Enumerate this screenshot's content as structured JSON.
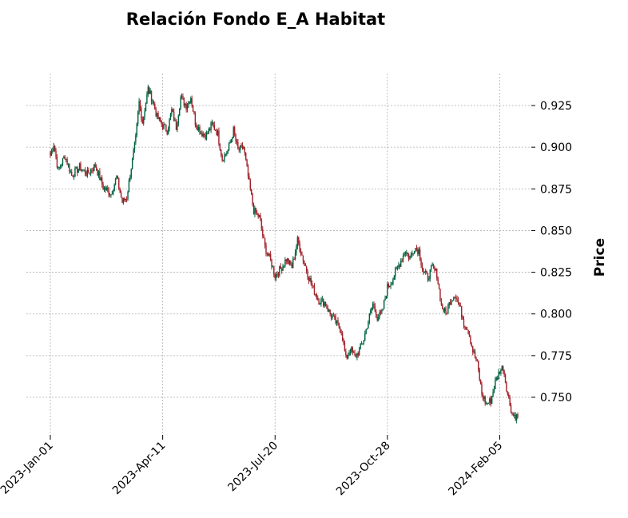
{
  "chart_data": {
    "type": "candlestick",
    "title": "Relación Fondo E_A Habitat",
    "ylabel": "Price",
    "xlabel": "",
    "ylim": [
      0.73,
      0.945
    ],
    "yticks": [
      0.75,
      0.775,
      0.8,
      0.825,
      0.85,
      0.875,
      0.9,
      0.925
    ],
    "ytick_labels": [
      "0.750",
      "0.775",
      "0.800",
      "0.825",
      "0.850",
      "0.875",
      "0.900",
      "0.925"
    ],
    "xticks": [
      "2023-Jan-01",
      "2023-Apr-11",
      "2023-Jul-20",
      "2023-Oct-28",
      "2024-Feb-05"
    ],
    "x_start": "2023-01-01",
    "x_end": "2024-02-21",
    "grid": true,
    "colors": {
      "up": "#006340",
      "down": "#a02128",
      "grid": "#b0b0b0"
    },
    "close_path": [
      [
        "2023-01-01",
        0.895
      ],
      [
        "2023-01-04",
        0.902
      ],
      [
        "2023-01-08",
        0.886
      ],
      [
        "2023-01-14",
        0.895
      ],
      [
        "2023-01-20",
        0.883
      ],
      [
        "2023-01-27",
        0.888
      ],
      [
        "2023-02-03",
        0.884
      ],
      [
        "2023-02-10",
        0.889
      ],
      [
        "2023-02-17",
        0.876
      ],
      [
        "2023-02-24",
        0.872
      ],
      [
        "2023-03-01",
        0.882
      ],
      [
        "2023-03-06",
        0.867
      ],
      [
        "2023-03-10",
        0.87
      ],
      [
        "2023-03-14",
        0.888
      ],
      [
        "2023-03-18",
        0.905
      ],
      [
        "2023-03-21",
        0.927
      ],
      [
        "2023-03-24",
        0.915
      ],
      [
        "2023-03-29",
        0.935
      ],
      [
        "2023-04-02",
        0.928
      ],
      [
        "2023-04-06",
        0.918
      ],
      [
        "2023-04-11",
        0.913
      ],
      [
        "2023-04-15",
        0.91
      ],
      [
        "2023-04-19",
        0.922
      ],
      [
        "2023-04-23",
        0.912
      ],
      [
        "2023-04-27",
        0.93
      ],
      [
        "2023-05-02",
        0.925
      ],
      [
        "2023-05-06",
        0.93
      ],
      [
        "2023-05-10",
        0.915
      ],
      [
        "2023-05-15",
        0.909
      ],
      [
        "2023-05-20",
        0.907
      ],
      [
        "2023-05-25",
        0.914
      ],
      [
        "2023-05-30",
        0.908
      ],
      [
        "2023-06-03",
        0.893
      ],
      [
        "2023-06-08",
        0.898
      ],
      [
        "2023-06-13",
        0.91
      ],
      [
        "2023-06-17",
        0.898
      ],
      [
        "2023-06-22",
        0.9
      ],
      [
        "2023-06-27",
        0.878
      ],
      [
        "2023-07-01",
        0.862
      ],
      [
        "2023-07-06",
        0.858
      ],
      [
        "2023-07-11",
        0.84
      ],
      [
        "2023-07-16",
        0.832
      ],
      [
        "2023-07-20",
        0.823
      ],
      [
        "2023-07-25",
        0.827
      ],
      [
        "2023-07-30",
        0.833
      ],
      [
        "2023-08-04",
        0.828
      ],
      [
        "2023-08-09",
        0.844
      ],
      [
        "2023-08-14",
        0.833
      ],
      [
        "2023-08-19",
        0.822
      ],
      [
        "2023-08-23",
        0.815
      ],
      [
        "2023-08-28",
        0.808
      ],
      [
        "2023-09-02",
        0.807
      ],
      [
        "2023-09-07",
        0.8
      ],
      [
        "2023-09-12",
        0.795
      ],
      [
        "2023-09-17",
        0.79
      ],
      [
        "2023-09-21",
        0.773
      ],
      [
        "2023-09-25",
        0.779
      ],
      [
        "2023-09-29",
        0.774
      ],
      [
        "2023-10-03",
        0.778
      ],
      [
        "2023-10-07",
        0.785
      ],
      [
        "2023-10-11",
        0.796
      ],
      [
        "2023-10-15",
        0.806
      ],
      [
        "2023-10-19",
        0.798
      ],
      [
        "2023-10-23",
        0.8
      ],
      [
        "2023-10-28",
        0.816
      ],
      [
        "2023-11-01",
        0.82
      ],
      [
        "2023-11-05",
        0.826
      ],
      [
        "2023-11-09",
        0.832
      ],
      [
        "2023-11-13",
        0.838
      ],
      [
        "2023-11-17",
        0.833
      ],
      [
        "2023-11-21",
        0.84
      ],
      [
        "2023-11-25",
        0.838
      ],
      [
        "2023-11-29",
        0.825
      ],
      [
        "2023-12-03",
        0.822
      ],
      [
        "2023-12-07",
        0.828
      ],
      [
        "2023-12-11",
        0.824
      ],
      [
        "2023-12-15",
        0.805
      ],
      [
        "2023-12-19",
        0.8
      ],
      [
        "2023-12-23",
        0.808
      ],
      [
        "2023-12-27",
        0.812
      ],
      [
        "2023-12-31",
        0.805
      ],
      [
        "2024-01-04",
        0.795
      ],
      [
        "2024-01-08",
        0.79
      ],
      [
        "2024-01-12",
        0.778
      ],
      [
        "2024-01-16",
        0.77
      ],
      [
        "2024-01-20",
        0.752
      ],
      [
        "2024-01-24",
        0.746
      ],
      [
        "2024-01-28",
        0.748
      ],
      [
        "2024-02-01",
        0.759
      ],
      [
        "2024-02-05",
        0.766
      ],
      [
        "2024-02-08",
        0.768
      ],
      [
        "2024-02-12",
        0.752
      ],
      [
        "2024-02-16",
        0.74
      ],
      [
        "2024-02-21",
        0.738
      ]
    ]
  }
}
